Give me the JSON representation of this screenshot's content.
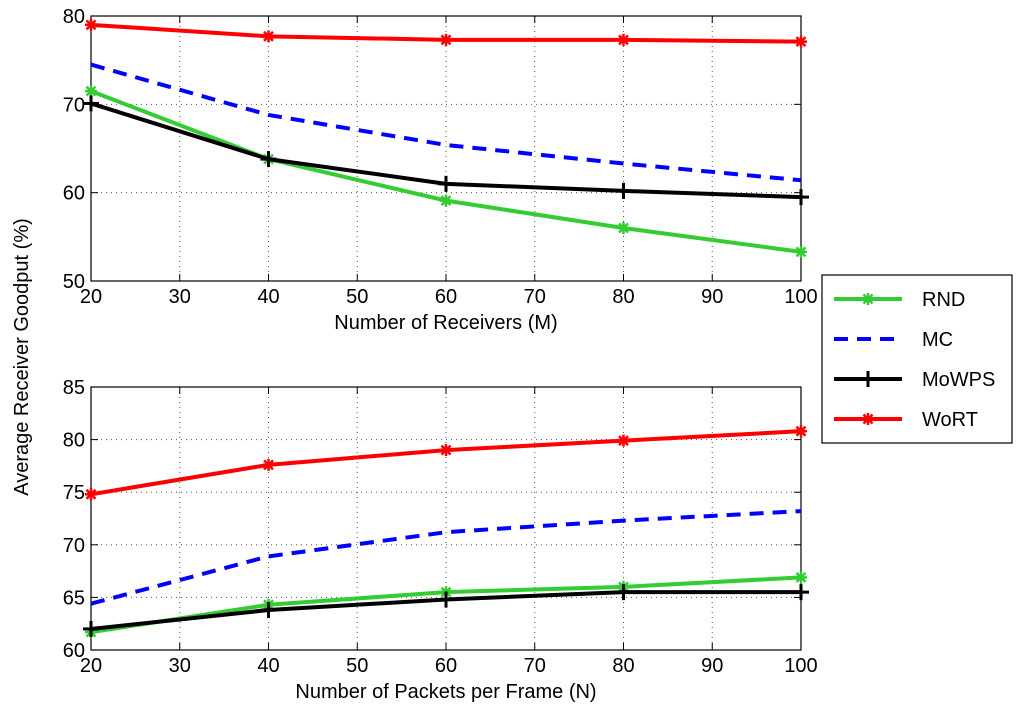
{
  "shared_ylabel": "Average Receiver Goodput (%)",
  "colors": {
    "RND": "#33cc33",
    "MC": "#0000ff",
    "MoWPS": "#000000",
    "WoRT": "#ff0000"
  },
  "legend": {
    "placement": "right, between subplots",
    "entries": [
      "RND",
      "MC",
      "MoWPS",
      "WoRT"
    ]
  },
  "chart_data": [
    {
      "type": "line",
      "xlabel": "Number of Receivers (M)",
      "ylabel": "",
      "xlim": [
        20,
        100
      ],
      "ylim": [
        50,
        80
      ],
      "xticks": [
        20,
        30,
        40,
        50,
        60,
        70,
        80,
        90,
        100
      ],
      "yticks": [
        50,
        60,
        70,
        80
      ],
      "grid": true,
      "x": [
        20,
        40,
        60,
        80,
        100
      ],
      "series": [
        {
          "name": "RND",
          "values": [
            71.5,
            63.8,
            59.1,
            56.0,
            53.3
          ],
          "style": "solid",
          "marker": "asterisk"
        },
        {
          "name": "MC",
          "values": [
            74.5,
            68.8,
            65.4,
            63.3,
            61.4
          ],
          "style": "dashed",
          "marker": "none"
        },
        {
          "name": "MoWPS",
          "values": [
            70.1,
            63.8,
            61.0,
            60.2,
            59.5
          ],
          "style": "solid",
          "marker": "plus"
        },
        {
          "name": "WoRT",
          "values": [
            79.0,
            77.7,
            77.3,
            77.3,
            77.1
          ],
          "style": "solid",
          "marker": "asterisk"
        }
      ]
    },
    {
      "type": "line",
      "xlabel": "Number of Packets per Frame (N)",
      "ylabel": "",
      "xlim": [
        20,
        100
      ],
      "ylim": [
        60,
        85
      ],
      "xticks": [
        20,
        30,
        40,
        50,
        60,
        70,
        80,
        90,
        100
      ],
      "yticks": [
        60,
        65,
        70,
        75,
        80,
        85
      ],
      "grid": true,
      "x": [
        20,
        40,
        60,
        80,
        100
      ],
      "series": [
        {
          "name": "RND",
          "values": [
            61.7,
            64.3,
            65.5,
            66.0,
            66.9
          ],
          "style": "solid",
          "marker": "asterisk"
        },
        {
          "name": "MC",
          "values": [
            64.4,
            68.9,
            71.2,
            72.3,
            73.2
          ],
          "style": "dashed",
          "marker": "none"
        },
        {
          "name": "MoWPS",
          "values": [
            62.0,
            63.8,
            64.8,
            65.5,
            65.5
          ],
          "style": "solid",
          "marker": "plus"
        },
        {
          "name": "WoRT",
          "values": [
            74.8,
            77.6,
            79.0,
            79.9,
            80.8
          ],
          "style": "solid",
          "marker": "asterisk"
        }
      ]
    }
  ]
}
